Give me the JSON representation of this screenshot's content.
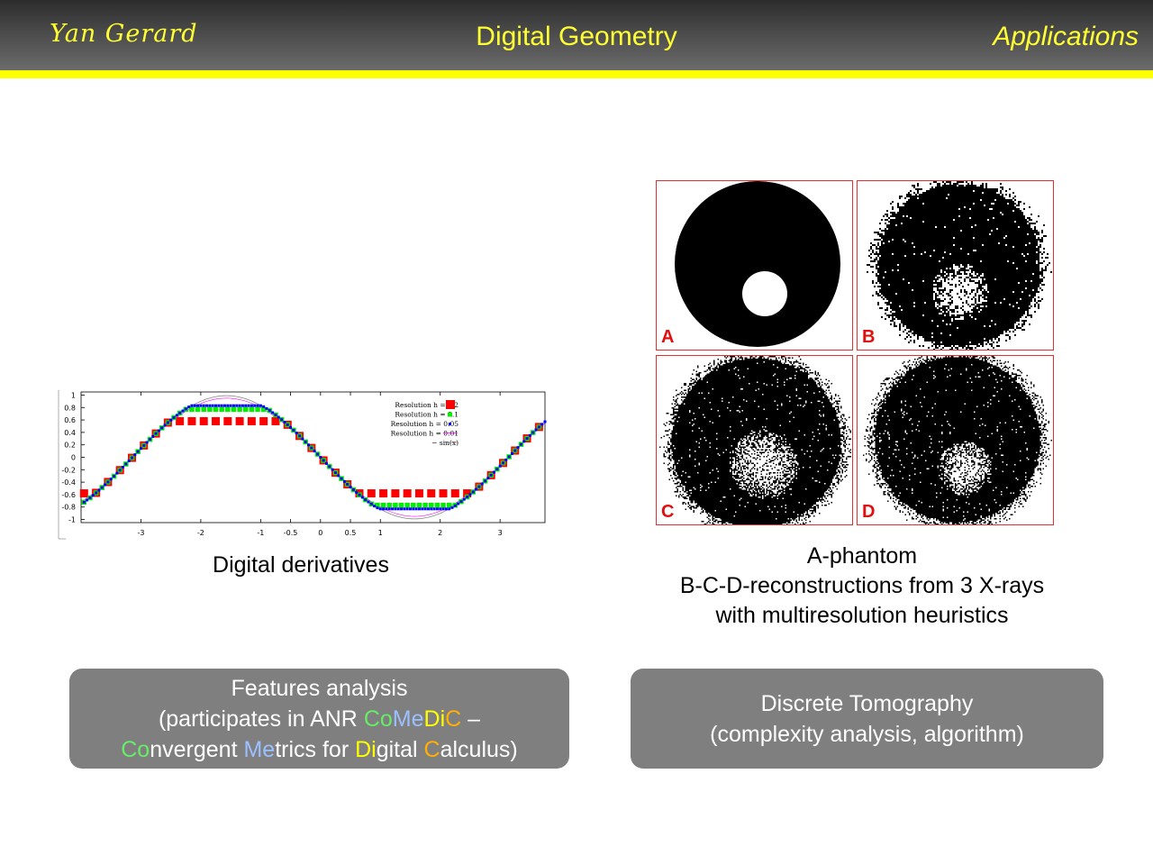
{
  "header": {
    "author": "Yan Gerard",
    "title": "Digital Geometry",
    "section": "Applications",
    "rule_color": "#ffff00",
    "text_color": "#ffff33"
  },
  "left": {
    "caption": "Digital derivatives",
    "plot": {
      "type": "scatter",
      "x_ticks": [
        "-3",
        "-2",
        "-1",
        "-0.5",
        "0",
        "0.5",
        "1",
        "2",
        "3"
      ],
      "y_ticks": [
        "1",
        "0.8",
        "0.6",
        "0.4",
        "0.2",
        "0",
        "-0.2",
        "-0.4",
        "-0.6",
        "-0.8",
        "-1"
      ],
      "xlim": [
        -4,
        3.75
      ],
      "ylim": [
        -1.05,
        1.05
      ],
      "legend_position": "top-right",
      "legend": [
        {
          "label": "Resolution h = 0.2",
          "color": "#ff0000"
        },
        {
          "label": "Resolution h = 0.1",
          "color": "#00ee00"
        },
        {
          "label": "Resolution h = 0.05",
          "color": "#0000ff"
        },
        {
          "label": "Resolution h = 0.01",
          "color": "#ff00ff"
        },
        {
          "label": "− sin(x)",
          "color": "#888888"
        }
      ]
    }
  },
  "right": {
    "panels": [
      {
        "letter": "A"
      },
      {
        "letter": "B"
      },
      {
        "letter": "C"
      },
      {
        "letter": "D"
      }
    ],
    "caption_lines": [
      "A-phantom",
      "B-C-D-reconstructions from 3 X-rays",
      "with multiresolution heuristics"
    ]
  },
  "boxes": {
    "features": {
      "line1": "Features analysis",
      "line2_pre": "(participates in ANR ",
      "acr_co": "Co",
      "acr_me": "Me",
      "acr_di": "Di",
      "acr_c": "C",
      "line2_post": " –",
      "l3_co": "Co",
      "l3_nvergent": "nvergent ",
      "l3_me": "Me",
      "l3_trics": "trics for ",
      "l3_di": "Di",
      "l3_gital": "gital ",
      "l3_c": "C",
      "l3_alculus": "alculus)"
    },
    "tomography": {
      "line1": "Discrete Tomography",
      "line2": "(complexity analysis, algorithm)"
    },
    "box_color": "#7f7f7f",
    "acronym_colors": {
      "green": "#66ee66",
      "blue": "#9cc0ff",
      "yellow": "#ffff00",
      "orange": "#ffb000"
    }
  }
}
